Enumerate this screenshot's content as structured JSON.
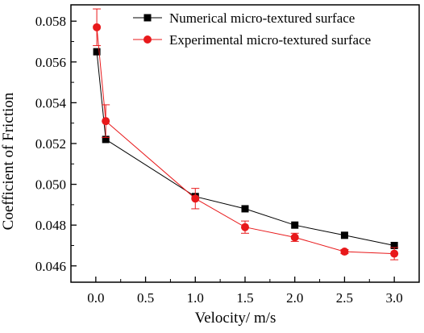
{
  "chart_data": {
    "type": "line",
    "title": "",
    "xlabel": "Velocity/ m/s",
    "ylabel": "Coefficient of Friction",
    "xlim": [
      -0.25,
      3.25
    ],
    "ylim": [
      0.0452,
      0.0588
    ],
    "xticks": [
      0.0,
      0.5,
      1.0,
      1.5,
      2.0,
      2.5,
      3.0
    ],
    "xtick_labels": [
      "0.0",
      "0.5",
      "1.0",
      "1.5",
      "2.0",
      "2.5",
      "3.0"
    ],
    "yticks": [
      0.046,
      0.048,
      0.05,
      0.052,
      0.054,
      0.056,
      0.058
    ],
    "ytick_labels": [
      "0.046",
      "0.048",
      "0.050",
      "0.052",
      "0.054",
      "0.056",
      "0.058"
    ],
    "grid": false,
    "legend_position": "top-right",
    "series": [
      {
        "name": "Numerical micro-textured surface",
        "color": "#000000",
        "marker": "square",
        "x": [
          0.01,
          0.1,
          1.0,
          1.5,
          2.0,
          2.5,
          3.0
        ],
        "y": [
          0.0565,
          0.0522,
          0.0494,
          0.0488,
          0.048,
          0.0475,
          0.047
        ]
      },
      {
        "name": "Experimental micro-textured surface",
        "color": "#e8191b",
        "marker": "circle",
        "x": [
          0.01,
          0.1,
          1.0,
          1.5,
          2.0,
          2.5,
          3.0
        ],
        "y": [
          0.0577,
          0.0531,
          0.0493,
          0.0479,
          0.0474,
          0.0467,
          0.0466
        ],
        "error": [
          0.0009,
          0.0008,
          0.0005,
          0.0003,
          0.0002,
          0.0001,
          0.0003
        ]
      }
    ]
  }
}
